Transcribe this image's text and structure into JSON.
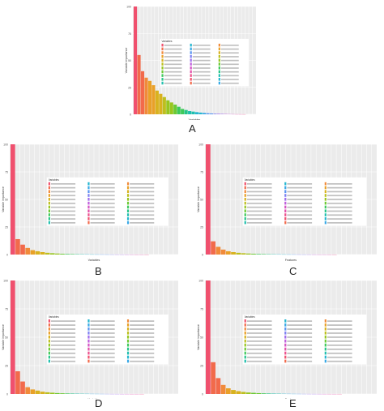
{
  "colors": {
    "panel_bg": "#ebebeb",
    "grid": "#ffffff",
    "legend_bg": "#ffffff",
    "palette": [
      "#f0506e",
      "#f26a4b",
      "#f18a3a",
      "#e9a028",
      "#d9b21f",
      "#bdbf1e",
      "#98c61f",
      "#6cc933",
      "#3ec95a",
      "#25c587",
      "#20bfae",
      "#23b6cf",
      "#38a8e6",
      "#5894f1",
      "#7d80f2",
      "#9f6cec",
      "#be5cdc",
      "#d352c4",
      "#e24ea9",
      "#ec4f8c"
    ]
  },
  "chart_data": [
    {
      "type": "bar",
      "panel": "A",
      "ylabel": "Variable importance",
      "xlabel": "Variables",
      "ylim": [
        0,
        100
      ],
      "yticks": [
        "0",
        "25",
        "50",
        "75",
        "100"
      ],
      "values": [
        100,
        55,
        40,
        34,
        31,
        27,
        22,
        19,
        16,
        13,
        11,
        9,
        7,
        5,
        4,
        3,
        2.5,
        2,
        1.6,
        1.3,
        1.0,
        0.8,
        0.6,
        0.5,
        0.4,
        0.3,
        0.2,
        0.15,
        0.1,
        0.08,
        0.06
      ],
      "legend_title": "Variables"
    },
    {
      "type": "bar",
      "panel": "B",
      "ylabel": "Variable importance",
      "xlabel": "Variables",
      "ylim": [
        0,
        100
      ],
      "yticks": [
        "0",
        "25",
        "50",
        "75",
        "100"
      ],
      "values": [
        100,
        14,
        9,
        6,
        4,
        3,
        2.2,
        1.6,
        1.2,
        0.9,
        0.7,
        0.5,
        0.4,
        0.3,
        0.25,
        0.2,
        0.15,
        0.12,
        0.1,
        0.08,
        0.06,
        0.05,
        0.04,
        0.03,
        0.03,
        0.02,
        0.02,
        0.02
      ],
      "legend_title": "Variables"
    },
    {
      "type": "bar",
      "panel": "C",
      "ylabel": "Variable importance",
      "xlabel": "Features",
      "ylim": [
        0,
        100
      ],
      "yticks": [
        "0",
        "25",
        "50",
        "75",
        "100"
      ],
      "values": [
        100,
        12,
        7,
        4.5,
        3,
        2.2,
        1.6,
        1.2,
        0.9,
        0.7,
        0.5,
        0.4,
        0.3,
        0.25,
        0.2,
        0.15,
        0.12,
        0.1,
        0.08,
        0.06,
        0.05,
        0.04,
        0.03,
        0.03,
        0.02,
        0.02
      ],
      "legend_title": "Variables"
    },
    {
      "type": "bar",
      "panel": "D",
      "ylabel": "Variable importance",
      "xlabel": "Variables",
      "ylim": [
        0,
        100
      ],
      "yticks": [
        "0",
        "25",
        "50",
        "75",
        "100"
      ],
      "values": [
        100,
        20,
        11,
        6,
        4,
        3,
        2,
        1.5,
        1.1,
        0.8,
        0.6,
        0.45,
        0.35,
        0.28,
        0.22,
        0.18,
        0.14,
        0.11,
        0.09,
        0.07,
        0.05,
        0.04,
        0.03,
        0.03,
        0.02,
        0.02,
        0.02
      ],
      "legend_title": "Variables"
    },
    {
      "type": "bar",
      "panel": "E",
      "ylabel": "Variable importance",
      "xlabel": "Features",
      "ylim": [
        0,
        100
      ],
      "yticks": [
        "0",
        "25",
        "50",
        "75",
        "100"
      ],
      "values": [
        100,
        28,
        14,
        8,
        5,
        3.5,
        2.5,
        1.8,
        1.3,
        1.0,
        0.75,
        0.55,
        0.42,
        0.33,
        0.26,
        0.2,
        0.16,
        0.12,
        0.1,
        0.08,
        0.06,
        0.05,
        0.04,
        0.03,
        0.03,
        0.02,
        0.02
      ],
      "legend_title": "Variables"
    }
  ],
  "panel_labels": [
    "A",
    "B",
    "C",
    "D",
    "E"
  ]
}
